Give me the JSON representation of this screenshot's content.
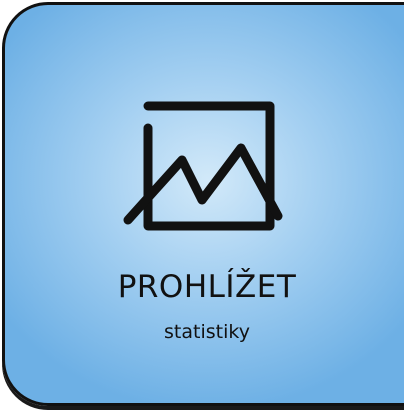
{
  "tile": {
    "title": "PROHLÍŽET",
    "subtitle": "statistiky",
    "icon": "line-chart-icon",
    "colors": {
      "background_center": "#d2e9f9",
      "background_edge": "#6db0e5",
      "border": "#111111",
      "text": "#111111"
    }
  }
}
